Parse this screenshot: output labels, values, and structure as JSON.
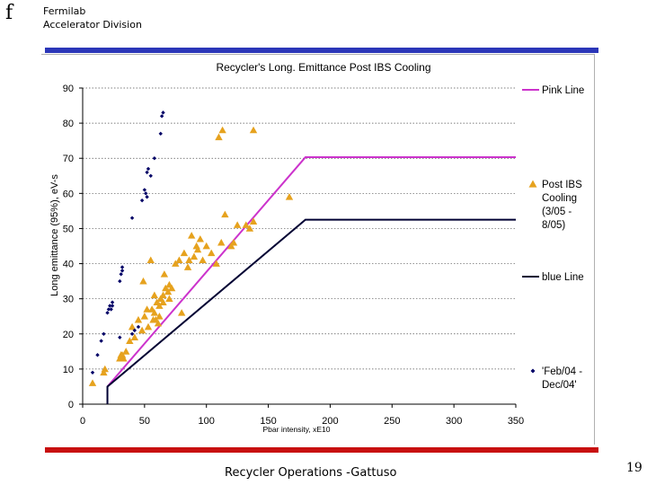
{
  "header": {
    "logo_glyph": "f",
    "org_line1": "Fermilab",
    "org_line2": "Accelerator Division"
  },
  "footer": {
    "text": "Recycler Operations -Gattuso",
    "page_number": "19"
  },
  "colors": {
    "top_bar": "#2b36b8",
    "bottom_bar": "#c81010",
    "pink_line": "#cc33cc",
    "blue_line": "#000033",
    "post_ibs": "#e6a21e",
    "feb_dec": "#000066"
  },
  "chart_data": {
    "type": "scatter",
    "title": "Recycler's Long. Emittance Post IBS Cooling",
    "xlabel": "Pbar intensity, xE10",
    "ylabel": "Long emittance (95%), eV-s",
    "xlim": [
      0,
      350
    ],
    "ylim": [
      0,
      90
    ],
    "xticks": [
      0,
      50,
      100,
      150,
      200,
      250,
      300,
      350
    ],
    "yticks": [
      0,
      10,
      20,
      30,
      40,
      50,
      60,
      70,
      80,
      90
    ],
    "grid": "horizontal dotted",
    "legend_position": "right",
    "series": [
      {
        "name": "Pink Line",
        "label_lines": [
          "Pink Line"
        ],
        "kind": "line",
        "x": [
          20,
          180,
          350
        ],
        "y": [
          5,
          70.3,
          70.3
        ]
      },
      {
        "name": "Post IBS Cooling (3/05 - 8/05)",
        "label_lines": [
          "Post IBS",
          "Cooling",
          "(3/05 -",
          "8/05)"
        ],
        "kind": "triangle",
        "x": [
          8,
          17,
          18,
          30,
          31,
          32,
          33,
          35,
          38,
          40,
          42,
          45,
          48,
          49,
          50,
          52,
          53,
          55,
          56,
          57,
          58,
          58,
          59,
          60,
          61,
          62,
          62,
          63,
          65,
          65,
          66,
          67,
          69,
          70,
          70,
          72,
          75,
          78,
          80,
          82,
          85,
          86,
          88,
          90,
          92,
          93,
          95,
          97,
          100,
          104,
          108,
          110,
          112,
          113,
          115,
          120,
          122,
          125,
          132,
          135,
          138,
          138,
          167
        ],
        "y": [
          6,
          9,
          10,
          13,
          14,
          14,
          13,
          15,
          18,
          22,
          19,
          24,
          21,
          35,
          25,
          27,
          22,
          41,
          27,
          24,
          31,
          26,
          24,
          29,
          23,
          28,
          25,
          30,
          29,
          31,
          37,
          33,
          32,
          30,
          34,
          33,
          40,
          41,
          26,
          43,
          39,
          41,
          48,
          42,
          45,
          44,
          47,
          41,
          45,
          43,
          40,
          76,
          46,
          78,
          54,
          45,
          46,
          51,
          51,
          50,
          52,
          78,
          59
        ]
      },
      {
        "name": "blue Line",
        "label_lines": [
          "blue Line"
        ],
        "kind": "line",
        "x": [
          20,
          20,
          180,
          350
        ],
        "y": [
          0,
          5,
          52.5,
          52.5
        ]
      },
      {
        "name": "'Feb/04 - Dec/04'",
        "label_lines": [
          "'Feb/04 -",
          "Dec/04'"
        ],
        "kind": "diamond",
        "x": [
          8,
          12,
          15,
          17,
          20,
          21,
          22,
          23,
          24,
          24,
          30,
          31,
          32,
          32,
          40,
          40,
          42,
          45,
          48,
          50,
          51,
          52,
          52,
          53,
          55,
          58,
          63,
          64,
          65,
          30
        ],
        "y": [
          9,
          14,
          18,
          20,
          26,
          27,
          28,
          27,
          29,
          28,
          35,
          37,
          38,
          39,
          20,
          53,
          21,
          22,
          58,
          61,
          60,
          66,
          59,
          67,
          65,
          70,
          77,
          82,
          83,
          19
        ]
      }
    ]
  }
}
